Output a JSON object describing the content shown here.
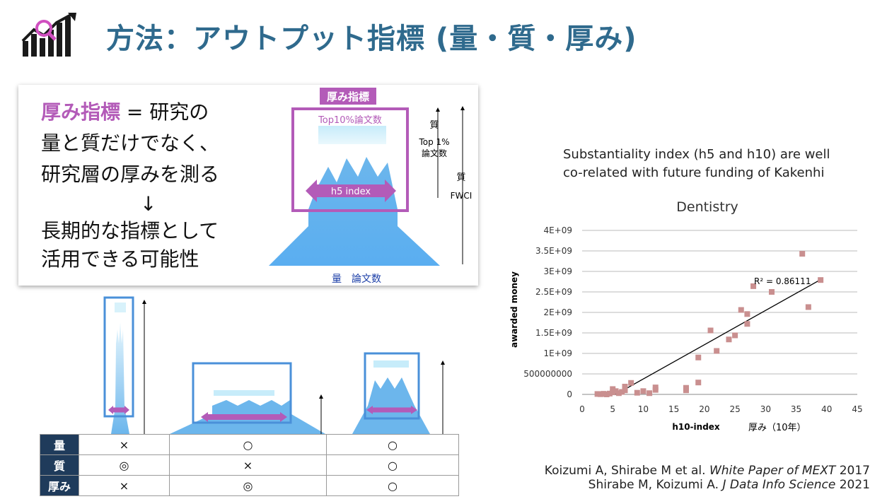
{
  "header": {
    "title": "方法：アウトプット指標 (量・質・厚み)",
    "logo_icon": "growth-chart-magnifier-icon"
  },
  "concept_card": {
    "highlight": "厚み指標",
    "line1_rest": " = 研究の",
    "line2": "量と質だけでなく、",
    "line3": "研究層の厚みを測る",
    "arrow": "↓",
    "line4": "長期的な指標として",
    "line5": "活用できる可能性",
    "diagram": {
      "badge": "厚み指標",
      "top10": "Top10%論文数",
      "h5": "h5 index",
      "quality_label": "質",
      "top1_line1": "Top 1%",
      "top1_line2": "論文数",
      "quality_label2": "質",
      "fwci": "FWCI",
      "bottom_label": "量　論文数"
    }
  },
  "comparison_table": {
    "rows": [
      {
        "label": "量",
        "cells": [
          "×",
          "○",
          "○"
        ]
      },
      {
        "label": "質",
        "cells": [
          "◎",
          "×",
          "○"
        ]
      },
      {
        "label": "厚み",
        "cells": [
          "×",
          "◎",
          "○"
        ]
      }
    ]
  },
  "chart_caption": {
    "line1": "Substantiality index (h5 and h10) are well",
    "line2": "co-related with future funding of Kakenhi"
  },
  "chart_data": {
    "type": "scatter",
    "title": "Dentistry",
    "xlabel": "h10-index",
    "xlabel_ja": "厚み（10年）",
    "ylabel": "awarded money",
    "xlim": [
      0,
      45
    ],
    "ylim": [
      0,
      4000000000
    ],
    "x_ticks": [
      "0",
      "5",
      "10",
      "15",
      "20",
      "25",
      "30",
      "35",
      "40",
      "45"
    ],
    "y_ticks": [
      "0",
      "500000000",
      "1E+09",
      "1.5E+09",
      "2E+09",
      "2.5E+09",
      "3E+09",
      "3.5E+09",
      "4E+09"
    ],
    "grid": "horizontal",
    "annotation": "R² = 0.86111",
    "marker_color": "#c98f8f",
    "trendline": {
      "x": [
        5.5,
        39
      ],
      "y": [
        0,
        2800000000
      ]
    },
    "points": [
      {
        "x": 2.5,
        "y": 10000000
      },
      {
        "x": 3,
        "y": 5000000
      },
      {
        "x": 3.5,
        "y": 15000000
      },
      {
        "x": 4,
        "y": 0
      },
      {
        "x": 4.5,
        "y": 20000000
      },
      {
        "x": 5,
        "y": 50000000
      },
      {
        "x": 5.5,
        "y": 80000000
      },
      {
        "x": 5,
        "y": 130000000
      },
      {
        "x": 6,
        "y": 30000000
      },
      {
        "x": 6.5,
        "y": 60000000
      },
      {
        "x": 7,
        "y": 100000000
      },
      {
        "x": 7,
        "y": 190000000
      },
      {
        "x": 8,
        "y": 280000000
      },
      {
        "x": 9,
        "y": 40000000
      },
      {
        "x": 10,
        "y": 80000000
      },
      {
        "x": 11,
        "y": 30000000
      },
      {
        "x": 12,
        "y": 110000000
      },
      {
        "x": 12,
        "y": 170000000
      },
      {
        "x": 17,
        "y": 100000000
      },
      {
        "x": 17,
        "y": 160000000
      },
      {
        "x": 19,
        "y": 290000000
      },
      {
        "x": 19,
        "y": 900000000
      },
      {
        "x": 21,
        "y": 1560000000
      },
      {
        "x": 22,
        "y": 1060000000
      },
      {
        "x": 24,
        "y": 1340000000
      },
      {
        "x": 25,
        "y": 1440000000
      },
      {
        "x": 26,
        "y": 2060000000
      },
      {
        "x": 27,
        "y": 1720000000
      },
      {
        "x": 27,
        "y": 1960000000
      },
      {
        "x": 28,
        "y": 2640000000
      },
      {
        "x": 31,
        "y": 2500000000
      },
      {
        "x": 36,
        "y": 3430000000
      },
      {
        "x": 37,
        "y": 2130000000
      },
      {
        "x": 39,
        "y": 2790000000
      }
    ]
  },
  "references": {
    "ref1_pre": "Koizumi A, Shirabe M et al. ",
    "ref1_italic": "White Paper of MEXT",
    "ref1_post": " 2017",
    "ref2_pre": "Shirabe M, Koizumi A.  ",
    "ref2_italic": "J  Data Info Science",
    "ref2_post": " 2021"
  },
  "colors": {
    "title": "#2f6a8d",
    "highlight": "#b35bb8",
    "mountain": "#6cb6ec",
    "box_blue": "#4a90d9",
    "arrow_purple": "#b35bb8",
    "table_header": "#1f3b5b"
  }
}
